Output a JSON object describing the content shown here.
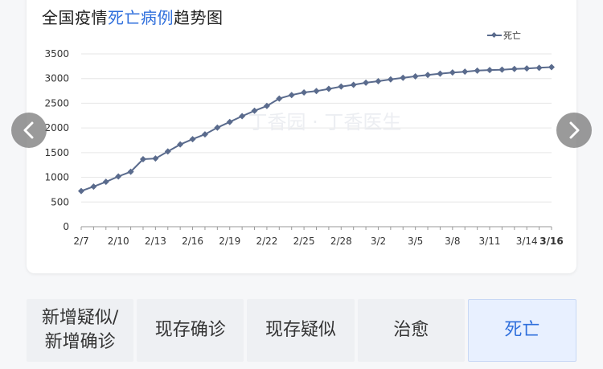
{
  "title": {
    "prefix": "全国疫情",
    "highlight": "死亡病例",
    "suffix": "趋势图"
  },
  "legend": {
    "label": "死亡"
  },
  "watermark": "丁香园 · 丁香医生",
  "nav": {
    "prev_icon": "chevron-left-icon",
    "next_icon": "chevron-right-icon"
  },
  "colors": {
    "series": "#5a6b8d",
    "accent": "#2f6fdc",
    "grid": "#e6e6e6"
  },
  "tabs": [
    {
      "label": "新增疑似/\n新增确诊",
      "active": false
    },
    {
      "label": "现存确诊",
      "active": false
    },
    {
      "label": "现存疑似",
      "active": false
    },
    {
      "label": "治愈",
      "active": false
    },
    {
      "label": "死亡",
      "active": true
    }
  ],
  "chart_data": {
    "type": "line",
    "title": "",
    "xlabel": "",
    "ylabel": "",
    "ylim": [
      0,
      3500
    ],
    "yticks": [
      0,
      500,
      1000,
      1500,
      2000,
      2500,
      3000,
      3500
    ],
    "xtick_labels": [
      "2/7",
      "2/10",
      "2/13",
      "2/16",
      "2/19",
      "2/22",
      "2/25",
      "2/28",
      "3/2",
      "3/5",
      "3/8",
      "3/11",
      "3/14",
      "3/16"
    ],
    "grid": true,
    "legend_position": "top-right",
    "categories": [
      "2/7",
      "2/8",
      "2/9",
      "2/10",
      "2/11",
      "2/12",
      "2/13",
      "2/14",
      "2/15",
      "2/16",
      "2/17",
      "2/18",
      "2/19",
      "2/20",
      "2/21",
      "2/22",
      "2/23",
      "2/24",
      "2/25",
      "2/26",
      "2/27",
      "2/28",
      "2/29",
      "3/1",
      "3/2",
      "3/3",
      "3/4",
      "3/5",
      "3/6",
      "3/7",
      "3/8",
      "3/9",
      "3/10",
      "3/11",
      "3/12",
      "3/13",
      "3/14",
      "3/15",
      "3/16"
    ],
    "series": [
      {
        "name": "死亡",
        "values": [
          723,
          812,
          909,
          1017,
          1114,
          1368,
          1381,
          1524,
          1666,
          1772,
          1870,
          2006,
          2121,
          2239,
          2348,
          2445,
          2595,
          2666,
          2718,
          2747,
          2791,
          2838,
          2873,
          2915,
          2946,
          2984,
          3015,
          3045,
          3073,
          3100,
          3123,
          3139,
          3161,
          3172,
          3180,
          3194,
          3204,
          3218,
          3231
        ]
      }
    ]
  }
}
